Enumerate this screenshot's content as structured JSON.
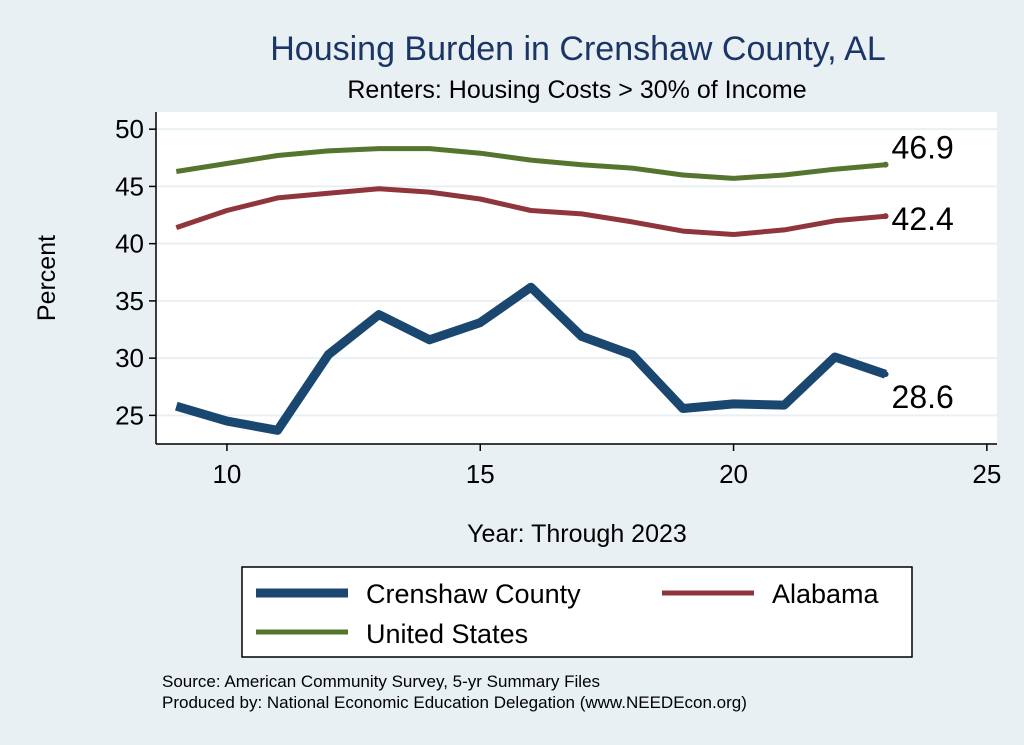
{
  "chart_data": {
    "type": "line",
    "title": "Housing Burden in Crenshaw County, AL",
    "subtitle": "Renters: Housing Costs > 30% of Income",
    "xlabel": "Year: Through 2023",
    "ylabel": "Percent",
    "xlim": [
      8.6,
      25.2
    ],
    "ylim": [
      22.5,
      51.5
    ],
    "xticks": [
      10,
      15,
      20,
      25
    ],
    "yticks": [
      25,
      30,
      35,
      40,
      45,
      50
    ],
    "grid": true,
    "series": [
      {
        "name": "Crenshaw County",
        "color": "#1a476f",
        "x": [
          9,
          10,
          11,
          12,
          13,
          14,
          15,
          16,
          17,
          18,
          19,
          20,
          21,
          22,
          23
        ],
        "values": [
          25.8,
          24.5,
          23.7,
          30.3,
          33.8,
          31.6,
          33.1,
          36.2,
          31.9,
          30.3,
          25.6,
          26.0,
          25.9,
          30.1,
          28.6
        ],
        "end_label": "28.6"
      },
      {
        "name": "Alabama",
        "color": "#90353b",
        "x": [
          9,
          10,
          11,
          12,
          13,
          14,
          15,
          16,
          17,
          18,
          19,
          20,
          21,
          22,
          23
        ],
        "values": [
          41.4,
          42.9,
          44.0,
          44.4,
          44.8,
          44.5,
          43.9,
          42.9,
          42.6,
          41.9,
          41.1,
          40.8,
          41.2,
          42.0,
          42.4
        ],
        "end_label": "42.4"
      },
      {
        "name": "United States",
        "color": "#55752f",
        "x": [
          9,
          10,
          11,
          12,
          13,
          14,
          15,
          16,
          17,
          18,
          19,
          20,
          21,
          22,
          23
        ],
        "values": [
          46.3,
          47.0,
          47.7,
          48.1,
          48.3,
          48.3,
          47.9,
          47.3,
          46.9,
          46.6,
          46.0,
          45.7,
          46.0,
          46.5,
          46.9
        ],
        "end_label": "46.9"
      }
    ],
    "legend": {
      "position": "bottom",
      "items": [
        "Crenshaw County",
        "Alabama",
        "United States"
      ]
    },
    "source": "Source: American Community Survey, 5-yr Summary Files",
    "producer": "Produced by: National Economic Education Delegation (www.NEEDEcon.org)"
  }
}
